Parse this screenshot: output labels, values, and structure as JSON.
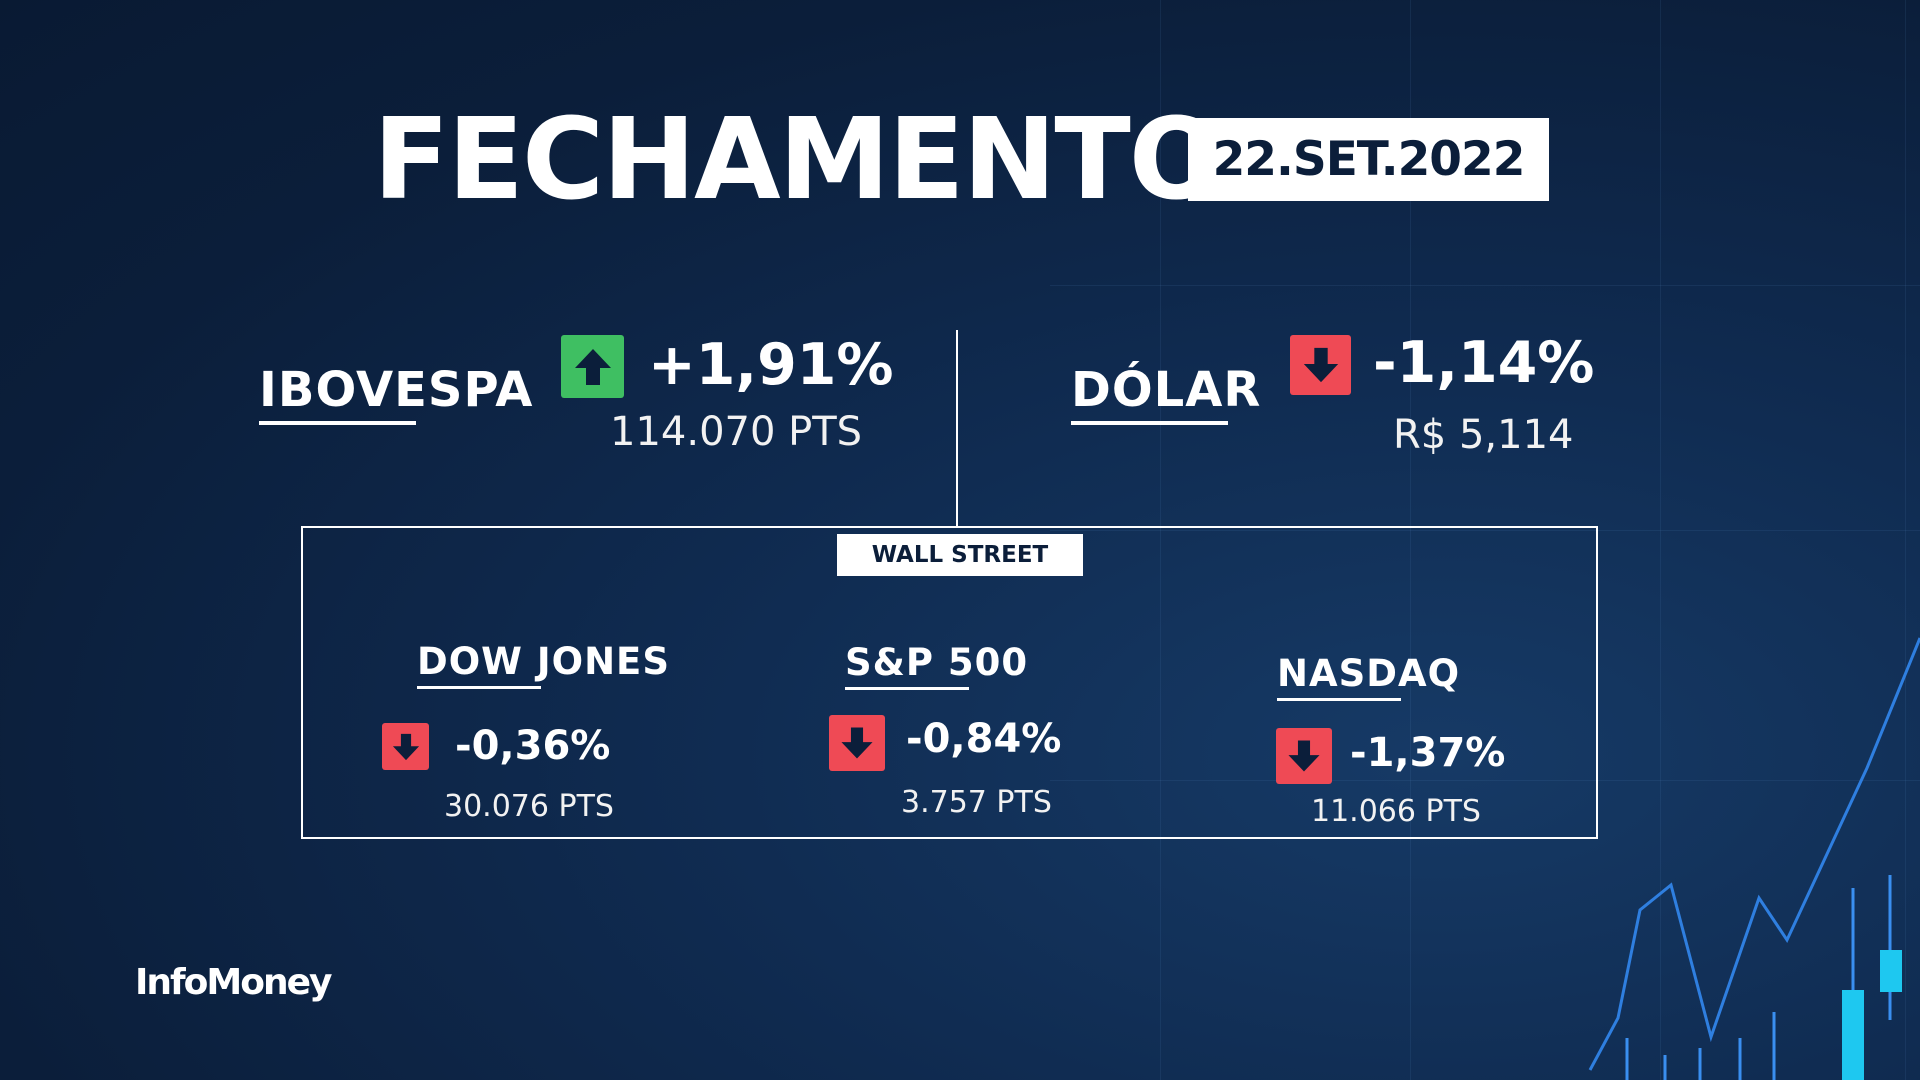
{
  "header": {
    "title": "FECHAMENTO",
    "date": "22.SET.2022"
  },
  "ibovespa": {
    "name": "IBOVESPA",
    "change": "+1,91%",
    "value": "114.070 PTS",
    "direction": "up"
  },
  "dolar": {
    "name": "DÓLAR",
    "change": "-1,14%",
    "value": "R$ 5,114",
    "direction": "down"
  },
  "wall_street": {
    "label": "WALL STREET",
    "dow": {
      "name": "DOW JONES",
      "change": "-0,36%",
      "value": "30.076 PTS",
      "direction": "down"
    },
    "sp500": {
      "name": "S&P 500",
      "change": "-0,84%",
      "value": "3.757 PTS",
      "direction": "down"
    },
    "nasdaq": {
      "name": "NASDAQ",
      "change": "-1,37%",
      "value": "11.066 PTS",
      "direction": "down"
    }
  },
  "brand": {
    "logo": "InfoMoney"
  },
  "colors": {
    "background": "#0b1e3a",
    "up": "#3fbf62",
    "down": "#ef4a55",
    "accent_line": "#2f7fe0"
  },
  "icons": {
    "up": "arrow-up-icon",
    "down": "arrow-down-icon"
  }
}
